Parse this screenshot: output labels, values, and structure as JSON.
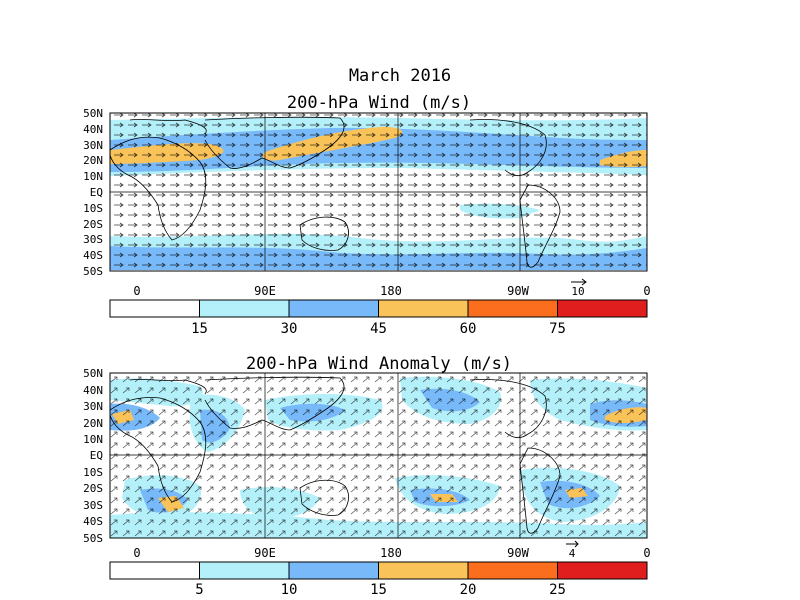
{
  "header": {
    "title": "March 2016",
    "subtitle": "200-hPa Wind (m/s)"
  },
  "panels": [
    {
      "id": "mean",
      "title": "200-hPa Wind (m/s)",
      "lat_labels": [
        "50N",
        "40N",
        "30N",
        "20N",
        "10N",
        "EQ",
        "10S",
        "20S",
        "30S",
        "40S",
        "50S"
      ],
      "lon_labels": [
        "0",
        "90E",
        "180",
        "90W",
        "0"
      ],
      "ref_vector_label": "10",
      "colorbar": {
        "ticks": [
          "15",
          "30",
          "45",
          "60",
          "75"
        ],
        "colors": [
          "#ffffff",
          "#b4f0fa",
          "#78b9fa",
          "#fac35a",
          "#fa6e1e",
          "#e11e1e"
        ]
      }
    },
    {
      "id": "anomaly",
      "title": "200-hPa Wind Anomaly (m/s)",
      "lat_labels": [
        "50N",
        "40N",
        "30N",
        "20N",
        "10N",
        "EQ",
        "10S",
        "20S",
        "30S",
        "40S",
        "50S"
      ],
      "lon_labels": [
        "0",
        "90E",
        "180",
        "90W",
        "0"
      ],
      "ref_vector_label": "4",
      "colorbar": {
        "ticks": [
          "5",
          "10",
          "15",
          "20",
          "25"
        ],
        "colors": [
          "#ffffff",
          "#b4f0fa",
          "#78b9fa",
          "#fac35a",
          "#fa6e1e",
          "#e11e1e"
        ]
      }
    }
  ]
}
